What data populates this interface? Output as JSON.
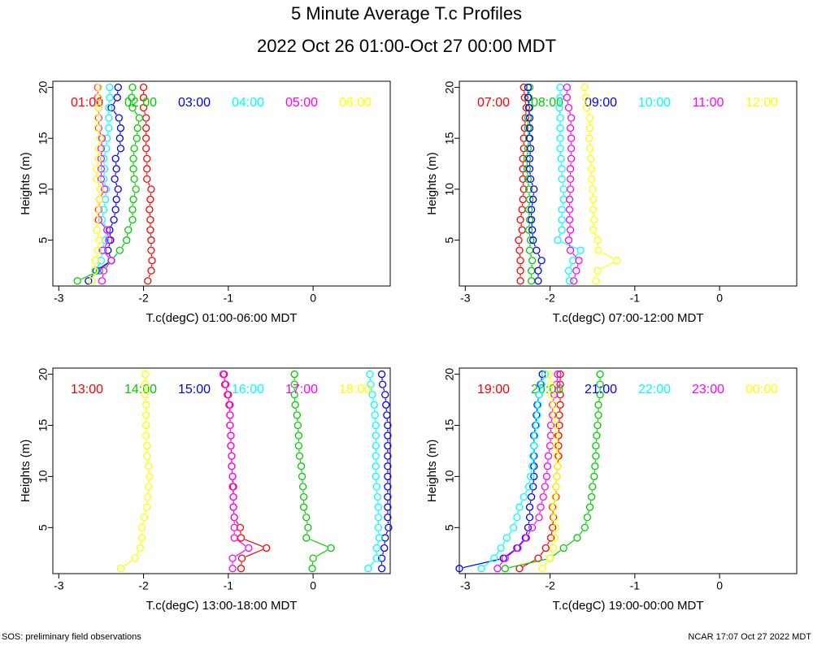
{
  "title": "5 Minute Average T.c Profiles",
  "subtitle": "2022 Oct 26 01:00-Oct 27 00:00 MDT",
  "footer_left": "SOS: preliminary field observations",
  "footer_right": "NCAR 17:07 Oct 27 2022 MDT",
  "chart_data": [
    {
      "type": "scatter",
      "x_label": "T.c(degC) 01:00-06:00 MDT",
      "y_label": "Heights (m)",
      "xlim": [
        -3.07,
        0.91
      ],
      "ylim": [
        0.5,
        20.6
      ],
      "xticks": [
        -3,
        -2,
        -1,
        0
      ],
      "yticks": [
        5,
        10,
        15,
        20
      ],
      "y": [
        1,
        2,
        3,
        4,
        5,
        6,
        7,
        8,
        9,
        10,
        11,
        12,
        13,
        14,
        15,
        16,
        17,
        18,
        19,
        20
      ],
      "series": [
        {
          "name": "01:00",
          "color": "#ff0000",
          "x": [
            -1.95,
            -1.91,
            -1.9,
            -1.91,
            -1.91,
            -1.92,
            -1.92,
            -1.93,
            -1.92,
            -1.91,
            -1.96,
            -1.96,
            -1.96,
            -1.97,
            -1.97,
            -1.97,
            -1.97,
            -2.0,
            -2.0,
            -2.0
          ]
        },
        {
          "name": "02:00",
          "color": "#00cc00",
          "x": [
            -2.78,
            -2.52,
            -2.38,
            -2.28,
            -2.2,
            -2.18,
            -2.13,
            -2.13,
            -2.12,
            -2.09,
            -2.11,
            -2.12,
            -2.12,
            -2.11,
            -2.08,
            -2.07,
            -2.05,
            -2.13,
            -2.14,
            -2.13
          ]
        },
        {
          "name": "03:00",
          "color": "#0000ff",
          "x": [
            -2.65,
            -2.56,
            -2.38,
            -2.42,
            -2.39,
            -2.4,
            -2.35,
            -2.33,
            -2.32,
            -2.3,
            -2.34,
            -2.32,
            -2.33,
            -2.27,
            -2.28,
            -2.27,
            -2.29,
            -2.38,
            -2.31,
            -2.3
          ]
        },
        {
          "name": "04:00",
          "color": "#00ffff",
          "x": [
            -2.61,
            -2.57,
            -2.5,
            -2.49,
            -2.45,
            -2.43,
            -2.49,
            -2.47,
            -2.45,
            -2.44,
            -2.47,
            -2.46,
            -2.47,
            -2.44,
            -2.43,
            -2.41,
            -2.41,
            -2.41,
            -2.4,
            -2.4
          ]
        },
        {
          "name": "05:00",
          "color": "#ff00ff",
          "x": [
            -2.49,
            -2.47,
            -2.38,
            -2.48,
            -2.41,
            -2.43,
            -2.53,
            -2.53,
            -2.52,
            -2.46,
            -2.5,
            -2.5,
            -2.5,
            -2.5,
            -2.49,
            -2.53,
            -2.53,
            -2.53,
            -2.54,
            -2.54
          ]
        },
        {
          "name": "06:00",
          "color": "#ffff00",
          "x": [
            -2.61,
            -2.58,
            -2.57,
            -2.54,
            -2.52,
            -2.55,
            -2.55,
            -2.54,
            -2.52,
            -2.51,
            -2.55,
            -2.55,
            -2.53,
            -2.53,
            -2.51,
            -2.54,
            -2.54,
            -2.53,
            -2.53,
            -2.53
          ]
        }
      ]
    },
    {
      "type": "scatter",
      "x_label": "T.c(degC) 07:00-12:00 MDT",
      "y_label": "Heights (m)",
      "xlim": [
        -3.07,
        0.91
      ],
      "ylim": [
        0.5,
        20.6
      ],
      "xticks": [
        -3,
        -2,
        -1,
        0
      ],
      "yticks": [
        5,
        10,
        15,
        20
      ],
      "y": [
        1,
        2,
        3,
        4,
        5,
        6,
        7,
        8,
        9,
        10,
        11,
        12,
        13,
        14,
        15,
        16,
        17,
        18,
        19,
        20
      ],
      "series": [
        {
          "name": "07:00",
          "color": "#ff0000",
          "x": [
            -2.35,
            -2.35,
            -2.35,
            -2.36,
            -2.37,
            -2.33,
            -2.35,
            -2.33,
            -2.32,
            -2.31,
            -2.32,
            -2.32,
            -2.32,
            -2.31,
            -2.31,
            -2.3,
            -2.29,
            -2.28,
            -2.3,
            -2.31
          ]
        },
        {
          "name": "08:00",
          "color": "#00cc00",
          "x": [
            -2.22,
            -2.22,
            -2.21,
            -2.24,
            -2.23,
            -2.25,
            -2.24,
            -2.25,
            -2.24,
            -2.25,
            -2.26,
            -2.27,
            -2.27,
            -2.26,
            -2.25,
            -2.26,
            -2.26,
            -2.24,
            -2.25,
            -2.24
          ]
        },
        {
          "name": "09:00",
          "color": "#0000ff",
          "x": [
            -2.14,
            -2.14,
            -2.1,
            -2.16,
            -2.2,
            -2.21,
            -2.22,
            -2.22,
            -2.2,
            -2.19,
            -2.23,
            -2.24,
            -2.24,
            -2.23,
            -2.24,
            -2.24,
            -2.24,
            -2.25,
            -2.26,
            -2.26
          ]
        },
        {
          "name": "10:00",
          "color": "#00ffff",
          "x": [
            -1.77,
            -1.78,
            -1.73,
            -1.64,
            -1.91,
            -1.86,
            -1.86,
            -1.86,
            -1.84,
            -1.84,
            -1.86,
            -1.86,
            -1.87,
            -1.88,
            -1.88,
            -1.88,
            -1.88,
            -1.89,
            -1.88,
            -1.88
          ]
        },
        {
          "name": "11:00",
          "color": "#ff00ff",
          "x": [
            -1.72,
            -1.69,
            -1.66,
            -1.76,
            -1.78,
            -1.76,
            -1.77,
            -1.77,
            -1.77,
            -1.76,
            -1.76,
            -1.76,
            -1.75,
            -1.75,
            -1.75,
            -1.76,
            -1.75,
            -1.78,
            -1.8,
            -1.8
          ]
        },
        {
          "name": "12:00",
          "color": "#ffff00",
          "x": [
            -1.46,
            -1.44,
            -1.21,
            -1.43,
            -1.44,
            -1.49,
            -1.48,
            -1.49,
            -1.49,
            -1.5,
            -1.51,
            -1.51,
            -1.52,
            -1.53,
            -1.54,
            -1.53,
            -1.53,
            -1.57,
            -1.58,
            -1.59
          ]
        }
      ]
    },
    {
      "type": "scatter",
      "x_label": "T.c(degC) 13:00-18:00 MDT",
      "y_label": "Heights (m)",
      "xlim": [
        -3.07,
        0.91
      ],
      "ylim": [
        0.5,
        20.6
      ],
      "xticks": [
        -3,
        -2,
        -1,
        0
      ],
      "yticks": [
        5,
        10,
        15,
        20
      ],
      "y": [
        1,
        2,
        3,
        4,
        5,
        6,
        7,
        8,
        9,
        10,
        11,
        12,
        13,
        14,
        15,
        16,
        17,
        18,
        19,
        20
      ],
      "series": [
        {
          "name": "13:00",
          "color": "#ff0000",
          "x": [
            -0.85,
            -0.84,
            -0.55,
            -0.85,
            -0.86,
            -0.93,
            -0.94,
            -0.94,
            -0.94,
            -0.95,
            -0.96,
            -0.96,
            -0.97,
            -0.97,
            -0.98,
            -0.98,
            -0.99,
            -1.0,
            -1.04,
            -1.05
          ]
        },
        {
          "name": "14:00",
          "color": "#00cc00",
          "x": [
            -0.01,
            0,
            0.21,
            -0.08,
            -0.06,
            -0.08,
            -0.11,
            -0.11,
            -0.12,
            -0.13,
            -0.14,
            -0.16,
            -0.17,
            -0.17,
            -0.18,
            -0.19,
            -0.21,
            -0.22,
            -0.22,
            -0.22
          ]
        },
        {
          "name": "15:00",
          "color": "#0000ff",
          "x": [
            0.81,
            0.81,
            0.84,
            0.85,
            0.89,
            0.88,
            0.88,
            0.88,
            0.88,
            0.88,
            0.88,
            0.88,
            0.88,
            0.88,
            0.88,
            0.87,
            0.86,
            0.85,
            0.82,
            0.81
          ]
        },
        {
          "name": "16:00",
          "color": "#00ffff",
          "x": [
            0.65,
            0.75,
            0.75,
            0.78,
            0.77,
            0.77,
            0.77,
            0.76,
            0.75,
            0.74,
            0.74,
            0.74,
            0.74,
            0.74,
            0.74,
            0.73,
            0.72,
            0.7,
            0.68,
            0.67
          ]
        },
        {
          "name": "17:00",
          "color": "#ff00ff",
          "x": [
            -0.95,
            -0.95,
            -0.76,
            -0.93,
            -0.93,
            -0.93,
            -0.94,
            -0.94,
            -0.95,
            -0.95,
            -0.96,
            -0.96,
            -0.97,
            -0.97,
            -0.98,
            -0.98,
            -0.98,
            -1.01,
            -1.03,
            -1.06
          ]
        },
        {
          "name": "18:00",
          "color": "#ffff00",
          "x": [
            -2.27,
            -2.1,
            -2.04,
            -2.02,
            -2.02,
            -1.99,
            -1.96,
            -1.95,
            -1.94,
            -1.93,
            -1.94,
            -1.96,
            -1.96,
            -1.97,
            -1.97,
            -1.97,
            -1.97,
            -1.98,
            -1.98,
            -1.98
          ]
        }
      ]
    },
    {
      "type": "scatter",
      "x_label": "T.c(degC) 19:00-00:00 MDT",
      "y_label": "Heights (m)",
      "xlim": [
        -3.07,
        0.91
      ],
      "ylim": [
        0.5,
        20.6
      ],
      "xticks": [
        -3,
        -2,
        -1,
        0
      ],
      "yticks": [
        5,
        10,
        15,
        20
      ],
      "y": [
        1,
        2,
        3,
        4,
        5,
        6,
        7,
        8,
        9,
        10,
        11,
        12,
        13,
        14,
        15,
        16,
        17,
        18,
        19,
        20
      ],
      "series": [
        {
          "name": "19:00",
          "color": "#ff0000",
          "x": [
            -2.36,
            -2.14,
            -2.05,
            -1.99,
            -1.97,
            -1.96,
            -1.97,
            -1.93,
            -1.93,
            -1.92,
            -1.91,
            -1.9,
            -1.9,
            -1.9,
            -1.89,
            -1.89,
            -1.88,
            -1.88,
            -1.88,
            -1.88
          ]
        },
        {
          "name": "20:00",
          "color": "#00cc00",
          "x": [
            -2.53,
            -2.0,
            -1.84,
            -1.68,
            -1.59,
            -1.56,
            -1.53,
            -1.51,
            -1.5,
            -1.48,
            -1.47,
            -1.46,
            -1.46,
            -1.45,
            -1.44,
            -1.43,
            -1.43,
            -1.41,
            -1.41,
            -1.41
          ]
        },
        {
          "name": "21:00",
          "color": "#0000ff",
          "x": [
            -3.07,
            -2.55,
            -2.39,
            -2.29,
            -2.26,
            -2.24,
            -2.24,
            -2.22,
            -2.2,
            -2.19,
            -2.19,
            -2.19,
            -2.19,
            -2.19,
            -2.17,
            -2.16,
            -2.15,
            -2.13,
            -2.11,
            -2.09
          ]
        },
        {
          "name": "22:00",
          "color": "#00ffff",
          "x": [
            -2.81,
            -2.66,
            -2.58,
            -2.51,
            -2.43,
            -2.39,
            -2.36,
            -2.31,
            -2.25,
            -2.23,
            -2.21,
            -2.2,
            -2.19,
            -2.18,
            -2.16,
            -2.15,
            -2.14,
            -2.13,
            -2.1,
            -2.06
          ]
        },
        {
          "name": "23:00",
          "color": "#ff00ff",
          "x": [
            -2.62,
            -2.53,
            -2.38,
            -2.28,
            -2.21,
            -2.13,
            -2.11,
            -2.08,
            -2.06,
            -2.04,
            -2.03,
            -2.02,
            -2.0,
            -1.99,
            -1.99,
            -1.97,
            -1.97,
            -1.95,
            -1.92,
            -1.91
          ]
        },
        {
          "name": "00:00",
          "color": "#ffff00",
          "x": [
            -2.09,
            -2.0,
            -1.96,
            -1.94,
            -1.93,
            -1.95,
            -1.96,
            -1.94,
            -1.93,
            -1.92,
            -1.91,
            -1.92,
            -1.93,
            -1.93,
            -1.94,
            -1.95,
            -1.96,
            -1.98,
            -1.99,
            -2.01
          ]
        }
      ]
    }
  ]
}
